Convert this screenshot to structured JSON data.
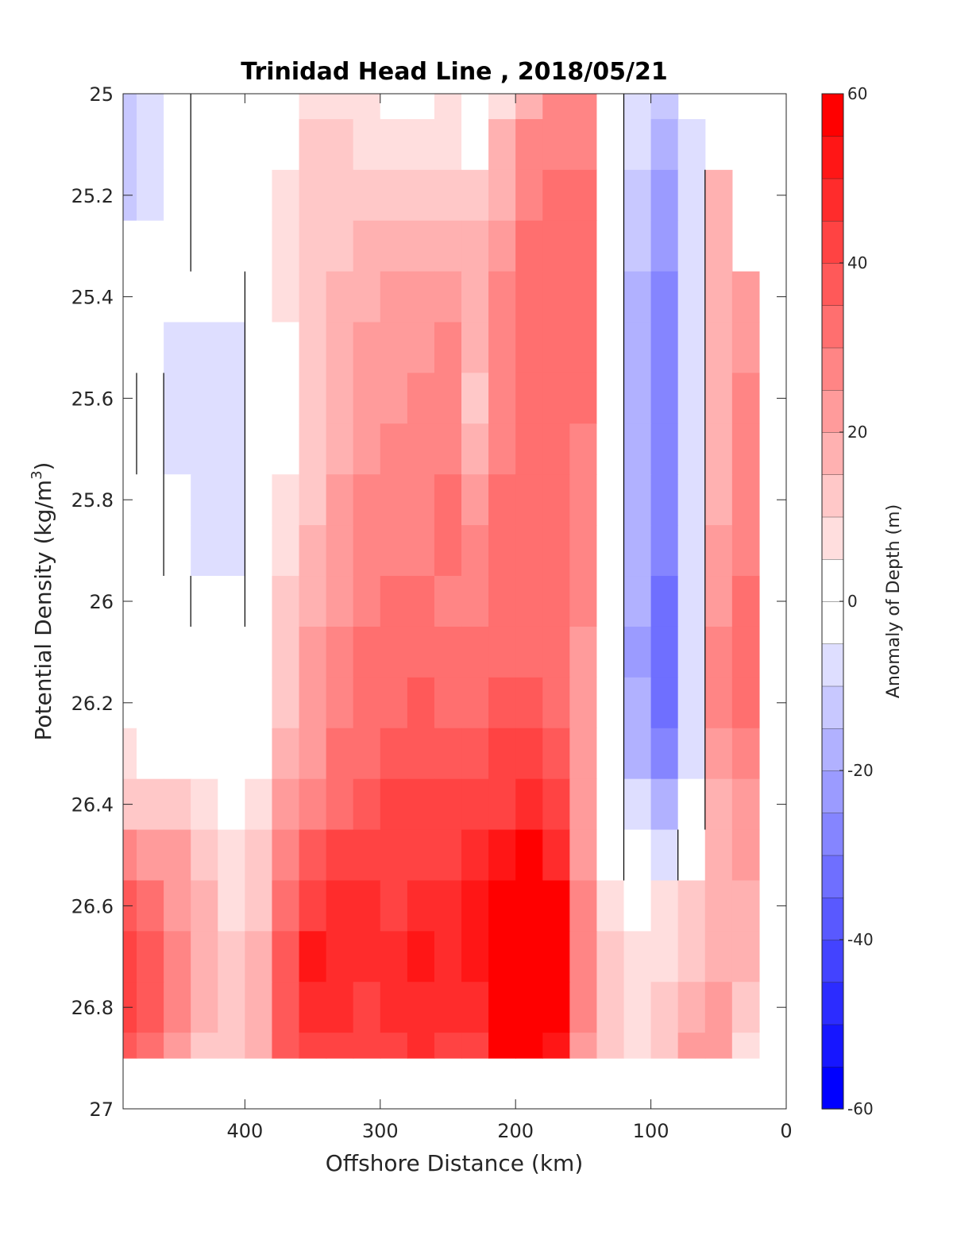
{
  "chart_data": {
    "type": "heatmap",
    "title": "Trinidad Head Line , 2018/05/21",
    "xlabel": "Offshore Distance (km)",
    "ylabel": "Potential Density (kg/m",
    "ylabel_sup": "3",
    "ylabel_end": ")",
    "xlim": [
      490,
      0
    ],
    "ylim": [
      25,
      27
    ],
    "x_ticks": [
      400,
      300,
      200,
      100,
      0
    ],
    "x_tick_labels": [
      "400",
      "300",
      "200",
      "100",
      "0"
    ],
    "y_ticks": [
      25,
      25.2,
      25.4,
      25.6,
      25.8,
      26,
      26.2,
      26.4,
      26.6,
      26.8,
      27
    ],
    "y_tick_labels": [
      "25",
      "25.2",
      "25.4",
      "25.6",
      "25.8",
      "26",
      "26.2",
      "26.4",
      "26.6",
      "26.8",
      "27"
    ],
    "colorbar": {
      "label": "Anomaly of Depth (m)",
      "range": [
        -60,
        60
      ],
      "step": 5,
      "ticks": [
        60,
        40,
        20,
        0,
        -20,
        -40,
        -60
      ],
      "tick_labels": [
        "60",
        "40",
        "20",
        "0",
        "-20",
        "-40",
        "-60"
      ],
      "colormap": "blue-white-red",
      "low_color": "#0000ff",
      "mid_color": "#ffffff",
      "high_color": "#ff0000"
    },
    "contour_levels": [
      0
    ],
    "data_extent": {
      "x": [
        490,
        20
      ],
      "y": [
        25,
        26.9
      ]
    },
    "grid": {
      "x": [
        490,
        470,
        450,
        430,
        410,
        390,
        370,
        350,
        330,
        310,
        290,
        270,
        250,
        230,
        210,
        190,
        170,
        150,
        130,
        110,
        90,
        70,
        50,
        30
      ],
      "y": [
        25.0,
        25.1,
        25.2,
        25.3,
        25.4,
        25.5,
        25.6,
        25.7,
        25.8,
        25.9,
        26.0,
        26.1,
        26.2,
        26.3,
        26.4,
        26.5,
        26.6,
        26.7,
        26.8,
        26.9
      ],
      "z": [
        [
          -12,
          -8,
          -3,
          0,
          0,
          0,
          2,
          8,
          8,
          5,
          4,
          4,
          5,
          2,
          8,
          18,
          25,
          25,
          0,
          -8,
          -15,
          null,
          null,
          null
        ],
        [
          -15,
          -10,
          -4,
          0,
          0,
          0,
          3,
          10,
          12,
          8,
          6,
          6,
          8,
          4,
          15,
          25,
          28,
          28,
          0,
          -10,
          -18,
          -6,
          null,
          null
        ],
        [
          -12,
          -6,
          -2,
          0,
          0,
          0,
          5,
          10,
          12,
          12,
          10,
          10,
          12,
          10,
          18,
          28,
          30,
          30,
          0,
          -12,
          -22,
          -6,
          15,
          null
        ],
        [
          -5,
          -2,
          -1,
          0,
          0,
          0,
          6,
          10,
          14,
          16,
          16,
          18,
          18,
          15,
          22,
          30,
          32,
          32,
          0,
          -14,
          -24,
          -6,
          18,
          null
        ],
        [
          -2,
          -1,
          -4,
          -5,
          -4,
          0,
          5,
          10,
          16,
          18,
          20,
          22,
          22,
          17,
          25,
          30,
          32,
          32,
          0,
          -16,
          -28,
          -6,
          18,
          22
        ],
        [
          -1,
          -1,
          -6,
          -8,
          -8,
          0,
          4,
          10,
          16,
          20,
          22,
          24,
          25,
          15,
          25,
          30,
          32,
          32,
          0,
          -17,
          -30,
          -6,
          18,
          24
        ],
        [
          -3,
          0,
          -7,
          -9,
          -8,
          0,
          3,
          10,
          17,
          22,
          24,
          26,
          26,
          12,
          25,
          32,
          32,
          30,
          0,
          -17,
          -30,
          -6,
          18,
          25
        ],
        [
          -1,
          0,
          -6,
          -9,
          -8,
          0,
          4,
          11,
          18,
          24,
          26,
          26,
          28,
          18,
          28,
          32,
          30,
          28,
          0,
          -16,
          -28,
          -6,
          18,
          25
        ],
        [
          0,
          0,
          -4,
          -8,
          -7,
          0,
          6,
          14,
          20,
          25,
          26,
          28,
          30,
          24,
          30,
          32,
          30,
          28,
          0,
          -17,
          -28,
          -6,
          18,
          25
        ],
        [
          0,
          0,
          -2,
          -6,
          -6,
          0,
          8,
          16,
          22,
          26,
          28,
          28,
          30,
          28,
          30,
          32,
          30,
          26,
          0,
          -18,
          -30,
          -6,
          22,
          28
        ],
        [
          0,
          0,
          0,
          -4,
          -4,
          0,
          10,
          18,
          24,
          28,
          30,
          30,
          28,
          28,
          32,
          32,
          30,
          26,
          0,
          -20,
          -32,
          -6,
          24,
          30
        ],
        [
          0,
          0,
          0,
          0,
          0,
          0,
          12,
          20,
          26,
          30,
          32,
          32,
          30,
          32,
          34,
          34,
          30,
          24,
          0,
          -22,
          -34,
          -6,
          26,
          34
        ],
        [
          2,
          0,
          0,
          0,
          0,
          2,
          14,
          22,
          28,
          32,
          34,
          36,
          34,
          34,
          36,
          36,
          32,
          22,
          0,
          -20,
          -32,
          -6,
          26,
          30
        ],
        [
          6,
          4,
          2,
          0,
          0,
          4,
          16,
          24,
          30,
          34,
          36,
          38,
          38,
          38,
          40,
          40,
          35,
          20,
          2,
          -16,
          -28,
          -6,
          22,
          26
        ],
        [
          14,
          12,
          10,
          6,
          2,
          6,
          20,
          28,
          34,
          38,
          40,
          40,
          40,
          42,
          44,
          46,
          40,
          20,
          3,
          -10,
          -18,
          -4,
          18,
          22
        ],
        [
          28,
          24,
          20,
          14,
          6,
          10,
          28,
          36,
          40,
          42,
          42,
          42,
          44,
          48,
          52,
          55,
          48,
          22,
          3,
          -4,
          -6,
          4,
          16,
          20
        ],
        [
          36,
          32,
          24,
          16,
          8,
          14,
          34,
          44,
          46,
          46,
          44,
          46,
          48,
          52,
          60,
          60,
          56,
          26,
          8,
          4,
          6,
          10,
          16,
          18
        ],
        [
          42,
          38,
          28,
          18,
          10,
          16,
          38,
          50,
          48,
          46,
          48,
          52,
          48,
          52,
          60,
          60,
          58,
          28,
          10,
          6,
          8,
          12,
          18,
          16
        ],
        [
          40,
          36,
          26,
          16,
          10,
          16,
          38,
          46,
          46,
          44,
          46,
          48,
          46,
          48,
          60,
          60,
          56,
          26,
          12,
          8,
          12,
          18,
          22,
          14
        ],
        [
          36,
          32,
          22,
          12,
          10,
          16,
          36,
          44,
          44,
          42,
          44,
          46,
          44,
          40,
          60,
          60,
          54,
          24,
          12,
          8,
          14,
          22,
          24,
          8
        ]
      ]
    }
  }
}
